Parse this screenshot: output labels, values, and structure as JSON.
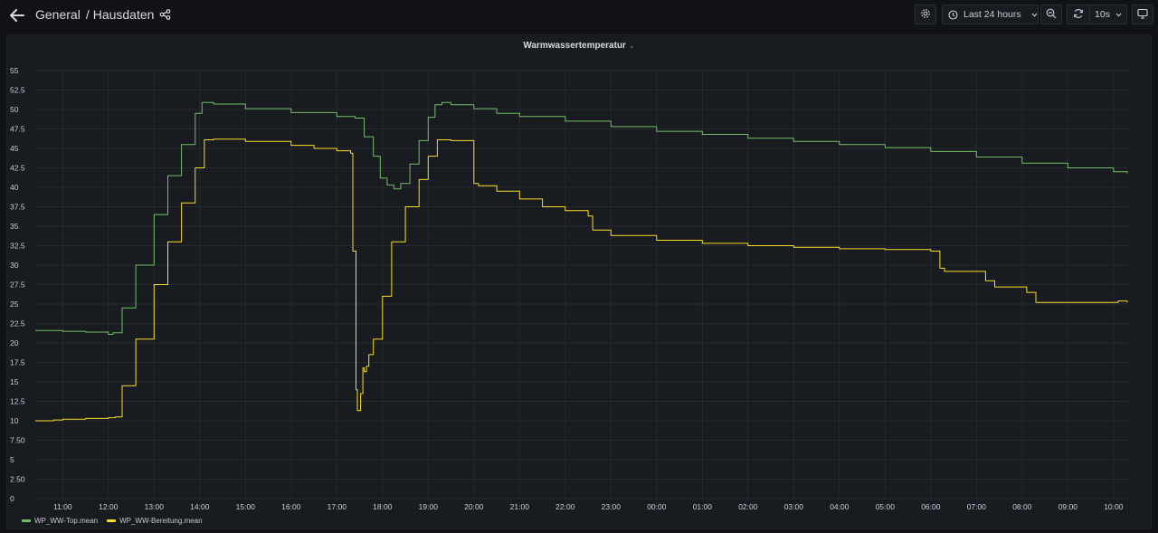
{
  "header": {
    "breadcrumb_folder": "General",
    "breadcrumb_separator": "/",
    "dashboard_title": "Hausdaten"
  },
  "toolbar": {
    "time_range_label": "Last 24 hours",
    "refresh_interval_label": "10s"
  },
  "panel": {
    "title": "Warmwassertemperatur"
  },
  "chart_data": {
    "type": "line",
    "title": "Warmwassertemperatur",
    "xlabel": "",
    "ylabel": "",
    "ylim": [
      0,
      55
    ],
    "y_ticks": [
      "0",
      "2.50",
      "5",
      "7.50",
      "10",
      "12.5",
      "15",
      "17.5",
      "20",
      "22.5",
      "25",
      "27.5",
      "30",
      "32.5",
      "35",
      "37.5",
      "40",
      "42.5",
      "45",
      "47.5",
      "50",
      "52.5",
      "55"
    ],
    "x_ticks": [
      "11:00",
      "12:00",
      "13:00",
      "14:00",
      "15:00",
      "16:00",
      "17:00",
      "18:00",
      "19:00",
      "20:00",
      "21:00",
      "22:00",
      "23:00",
      "00:00",
      "01:00",
      "02:00",
      "03:00",
      "04:00",
      "05:00",
      "06:00",
      "07:00",
      "08:00",
      "09:00",
      "10:00"
    ],
    "x_range_hours": [
      10.4,
      34.3
    ],
    "x_unit_note": "hours of day, values after midnight are 24+h",
    "grid": true,
    "legend_placement": "bottom-left",
    "series": [
      {
        "name": "WP_WW-Top.mean",
        "color": "#73bf69",
        "x": [
          10.4,
          11.0,
          11.5,
          12.0,
          12.1,
          12.3,
          12.6,
          13.0,
          13.3,
          13.6,
          13.9,
          14.05,
          14.3,
          15.0,
          16.0,
          17.0,
          17.4,
          17.6,
          17.8,
          17.95,
          18.1,
          18.25,
          18.4,
          18.6,
          18.8,
          19.0,
          19.15,
          19.3,
          19.5,
          20.0,
          20.5,
          21.0,
          22.0,
          23.0,
          0,
          1,
          2,
          3,
          4,
          5,
          6,
          7,
          8,
          9,
          10,
          10.3
        ],
        "x_hours": [
          10.4,
          11.0,
          11.5,
          12.0,
          12.1,
          12.3,
          12.6,
          13.0,
          13.3,
          13.6,
          13.9,
          14.05,
          14.3,
          15.0,
          16.0,
          17.0,
          17.4,
          17.6,
          17.8,
          17.95,
          18.1,
          18.25,
          18.4,
          18.6,
          18.8,
          19.0,
          19.15,
          19.3,
          19.5,
          20.0,
          20.5,
          21.0,
          22.0,
          23.0,
          24.0,
          25.0,
          26.0,
          27.0,
          28.0,
          29.0,
          30.0,
          31.0,
          32.0,
          33.0,
          34.0,
          34.3
        ],
        "values": [
          21.6,
          21.5,
          21.4,
          21.1,
          21.3,
          24.5,
          30.0,
          36.5,
          41.5,
          45.5,
          49.5,
          50.9,
          50.7,
          50.1,
          49.6,
          49.1,
          48.9,
          46.5,
          44.0,
          41.2,
          40.3,
          39.8,
          40.5,
          43.0,
          46.0,
          49.0,
          50.6,
          50.9,
          50.6,
          50.1,
          49.5,
          49.1,
          48.5,
          47.8,
          47.2,
          46.8,
          46.3,
          45.9,
          45.5,
          45.1,
          44.6,
          43.9,
          43.1,
          42.5,
          42.0,
          41.8
        ]
      },
      {
        "name": "WP_WW-Bereitung.mean",
        "color": "#fade2a",
        "x_hours": [
          10.4,
          10.8,
          11.0,
          11.5,
          12.0,
          12.15,
          12.3,
          12.6,
          13.0,
          13.3,
          13.6,
          13.9,
          14.1,
          14.3,
          15.0,
          16.0,
          16.5,
          17.0,
          17.3,
          17.35,
          17.42,
          17.45,
          17.52,
          17.57,
          17.6,
          17.65,
          17.7,
          17.8,
          18.0,
          18.2,
          18.5,
          18.8,
          19.0,
          19.2,
          19.5,
          19.9,
          20.0,
          20.1,
          20.5,
          21.0,
          21.5,
          22.0,
          22.5,
          22.6,
          23.0,
          24.0,
          25.0,
          26.0,
          27.0,
          28.0,
          29.0,
          30.0,
          30.2,
          30.3,
          31.0,
          31.2,
          31.4,
          32.0,
          32.1,
          32.3,
          33.0,
          34.0,
          34.1,
          34.3
        ],
        "values": [
          10.0,
          10.1,
          10.2,
          10.3,
          10.4,
          10.5,
          14.5,
          20.5,
          27.5,
          33.0,
          38.0,
          42.5,
          46.1,
          46.2,
          45.9,
          45.4,
          45.0,
          44.7,
          44.4,
          31.8,
          14.0,
          11.3,
          13.5,
          16.8,
          16.3,
          17.0,
          18.5,
          20.5,
          26.0,
          33.0,
          37.5,
          41.0,
          44.0,
          46.1,
          46.0,
          46.0,
          40.5,
          40.2,
          39.5,
          38.5,
          37.5,
          37.0,
          36.3,
          34.5,
          33.8,
          33.2,
          32.8,
          32.5,
          32.3,
          32.1,
          32.0,
          31.8,
          29.6,
          29.2,
          29.2,
          28.0,
          27.2,
          27.2,
          26.5,
          25.2,
          25.2,
          25.2,
          25.4,
          25.2
        ]
      }
    ]
  }
}
